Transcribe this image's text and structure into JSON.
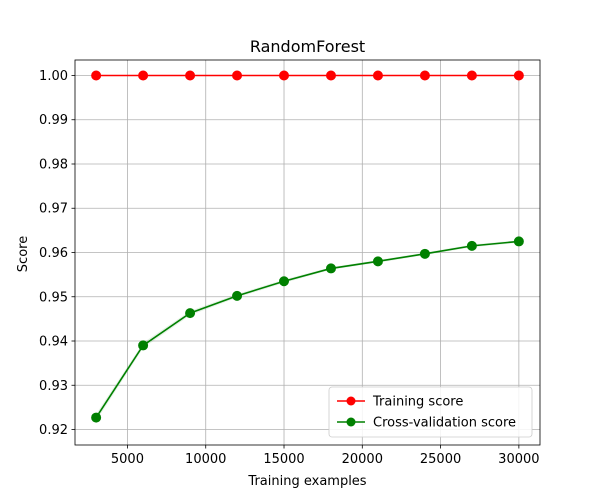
{
  "chart_data": {
    "type": "line",
    "title": "RandomForest",
    "xlabel": "Training examples",
    "ylabel": "Score",
    "xlim": [
      1650,
      31350
    ],
    "ylim": [
      0.9165,
      1.0035
    ],
    "xticks": [
      5000,
      10000,
      15000,
      20000,
      25000,
      30000
    ],
    "xtick_labels": [
      "5000",
      "10000",
      "15000",
      "20000",
      "25000",
      "30000"
    ],
    "yticks": [
      0.92,
      0.93,
      0.94,
      0.95,
      0.96,
      0.97,
      0.98,
      0.99,
      1.0
    ],
    "ytick_labels": [
      "0.92",
      "0.93",
      "0.94",
      "0.95",
      "0.96",
      "0.97",
      "0.98",
      "0.99",
      "1.00"
    ],
    "grid": true,
    "legend_position": "lower-right",
    "x": [
      3000,
      6000,
      9000,
      12000,
      15000,
      18000,
      21000,
      24000,
      27000,
      30000
    ],
    "series": [
      {
        "name": "Training score",
        "color": "#ff0000",
        "values": [
          1.0,
          1.0,
          1.0,
          1.0,
          1.0,
          1.0,
          1.0,
          1.0,
          1.0,
          1.0
        ],
        "band": [
          0.0,
          0.0,
          0.0,
          0.0,
          0.0,
          0.0,
          0.0,
          0.0,
          0.0,
          0.0
        ]
      },
      {
        "name": "Cross-validation score",
        "color": "#008000",
        "values": [
          0.9227,
          0.939,
          0.9463,
          0.9502,
          0.9535,
          0.9564,
          0.958,
          0.9597,
          0.9615,
          0.9625
        ],
        "band": [
          0.0008,
          0.0006,
          0.0005,
          0.0004,
          0.0004,
          0.0003,
          0.0003,
          0.0003,
          0.0003,
          0.0003
        ]
      }
    ]
  }
}
